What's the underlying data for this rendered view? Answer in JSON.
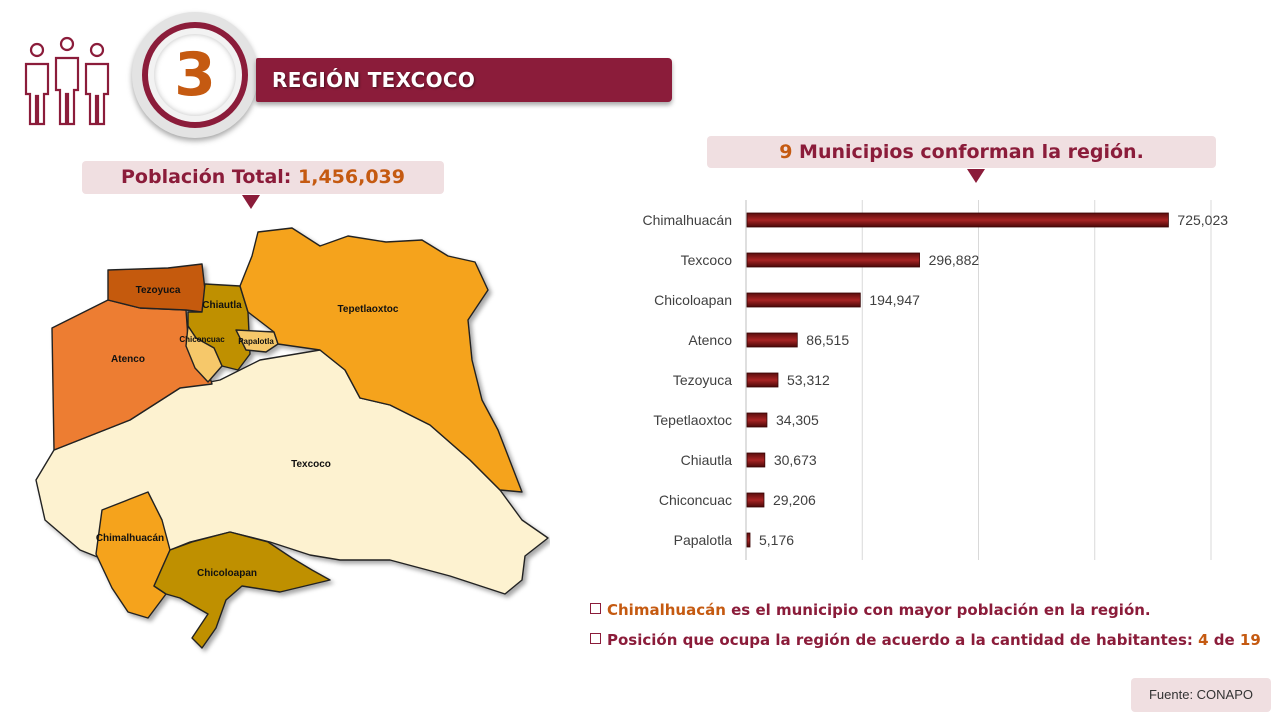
{
  "header": {
    "region_number": "3",
    "region_title": "REGIÓN TEXCOCO",
    "people_icon": "people-group-icon"
  },
  "population": {
    "label": "Población Total:",
    "value": "1,456,039"
  },
  "municipalities": {
    "count": "9",
    "label": "Municipios conforman la región."
  },
  "map": {
    "labels": [
      "Tezoyuca",
      "Chiautla",
      "Tepetlaoxtoc",
      "Chiconcuac",
      "Papalotla",
      "Atenco",
      "Texcoco",
      "Chimalhuacán",
      "Chicoloapan"
    ],
    "colors": {
      "Tezoyuca": "#c55a11",
      "Chiautla": "#bf9000",
      "Tepetlaoxtoc": "#f5a31a",
      "Chiconcuac": "#f6c86a",
      "Papalotla": "#f6c86a",
      "Atenco": "#ed7d31",
      "Texcoco": "#fdf2d0",
      "Chimalhuacán": "#f5a31a",
      "Chicoloapan": "#bf9000"
    }
  },
  "chart_data": {
    "type": "bar",
    "orientation": "horizontal",
    "categories": [
      "Chimalhuacán",
      "Texcoco",
      "Chicoloapan",
      "Atenco",
      "Tezoyuca",
      "Tepetlaoxtoc",
      "Chiautla",
      "Chiconcuac",
      "Papalotla"
    ],
    "values": [
      725023,
      296882,
      194947,
      86515,
      53312,
      34305,
      30673,
      29206,
      5176
    ],
    "value_labels": [
      "725,023",
      "296,882",
      "194,947",
      "86,515",
      "53,312",
      "34,305",
      "30,673",
      "29,206",
      "5,176"
    ],
    "xlim": [
      0,
      800000
    ],
    "grid": "vertical",
    "bar_color": "#8b1c1c"
  },
  "notes": [
    {
      "highlight": "Chimalhuacán",
      "text": " es el municipio con mayor población en la región."
    },
    {
      "text": "Posición que ocupa la región de acuerdo a la cantidad de habitantes: ",
      "pos": "4",
      "of": " de ",
      "total": "19"
    }
  ],
  "source": "Fuente: CONAPO"
}
